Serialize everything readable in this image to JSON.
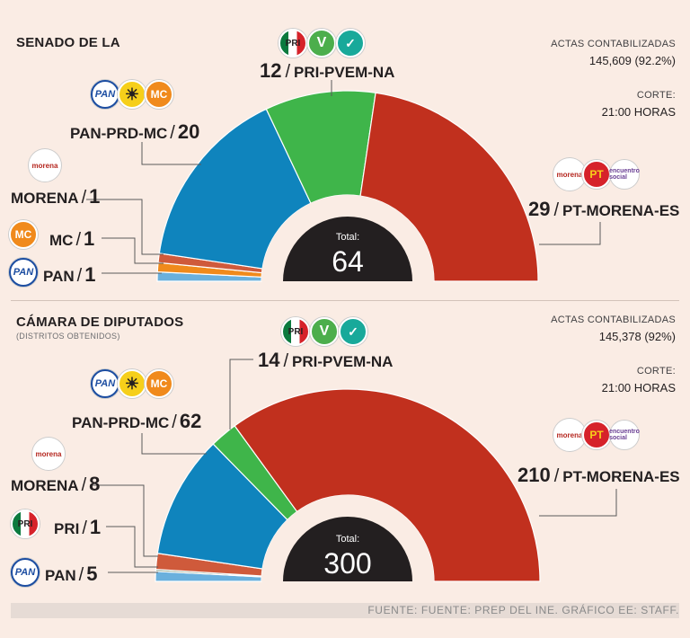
{
  "colors": {
    "pri_pvem_na": "#3fb54a",
    "pan_prd_mc": "#0f84bd",
    "morena": "#cf5a3b",
    "mc": "#f08a1c",
    "pan": "#6ab0dd",
    "pri": "#8aa08a",
    "pt_morena_es": "#c1301e"
  },
  "senado": {
    "title": "SENADO DE LA",
    "actas_label": "ACTAS CONTABILIZADAS",
    "actas_value": "145,609 (92.2%)",
    "corte_label": "CORTE:",
    "corte_value": "21:00 HORAS",
    "total_label": "Total:",
    "total_value": "64",
    "labels": {
      "pan_prd_mc": {
        "name": "PAN-PRD-MC",
        "sep": "/",
        "n": "20"
      },
      "morena": {
        "name": "MORENA",
        "sep": "/",
        "n": "1"
      },
      "mc": {
        "name": "MC",
        "sep": "/",
        "n": "1"
      },
      "pan": {
        "name": "PAN",
        "sep": "/",
        "n": "1"
      },
      "pri_pvem_na": {
        "n": "12",
        "sep": "/",
        "name": "PRI-PVEM-NA"
      },
      "pt_morena_es": {
        "n": "29",
        "sep": "/",
        "name": "PT-MORENA-ES"
      }
    }
  },
  "diputados": {
    "title": "CÁMARA DE DIPUTADOS",
    "subtitle": "(DISTRITOS OBTENIDOS)",
    "actas_label": "ACTAS CONTABILIZADAS",
    "actas_value": "145,378 (92%)",
    "corte_label": "CORTE:",
    "corte_value": "21:00 HORAS",
    "total_label": "Total:",
    "total_value": "300",
    "labels": {
      "pan_prd_mc": {
        "name": "PAN-PRD-MC",
        "sep": "/",
        "n": "62"
      },
      "morena": {
        "name": "MORENA",
        "sep": "/",
        "n": "8"
      },
      "pri": {
        "name": "PRI",
        "sep": "/",
        "n": "1"
      },
      "pan": {
        "name": "PAN",
        "sep": "/",
        "n": "5"
      },
      "pri_pvem_na": {
        "n": "14",
        "sep": "/",
        "name": "PRI-PVEM-NA"
      },
      "pt_morena_es": {
        "n": "210",
        "sep": "/",
        "name": "PT-MORENA-ES"
      }
    }
  },
  "logos": {
    "pan": "PAN",
    "prd": "☀",
    "mc": "MC",
    "pri": "PRI",
    "pvem": "V",
    "na": "✓",
    "morena": "morena",
    "pt": "PT",
    "es": "encuentro social"
  },
  "footer": "FUENTE: FUENTE: PREP DEL INE. GRÁFICO EE: STAFF.",
  "chart_data": [
    {
      "type": "pie",
      "title": "SENADO DE LA",
      "total": 64,
      "series": [
        {
          "name": "PAN",
          "value": 1
        },
        {
          "name": "MC",
          "value": 1
        },
        {
          "name": "MORENA",
          "value": 1
        },
        {
          "name": "PAN-PRD-MC",
          "value": 20
        },
        {
          "name": "PRI-PVEM-NA",
          "value": 12
        },
        {
          "name": "PT-MORENA-ES",
          "value": 29
        }
      ]
    },
    {
      "type": "pie",
      "title": "CÁMARA DE DIPUTADOS",
      "total": 300,
      "series": [
        {
          "name": "PAN",
          "value": 5
        },
        {
          "name": "PRI",
          "value": 1
        },
        {
          "name": "MORENA",
          "value": 8
        },
        {
          "name": "PAN-PRD-MC",
          "value": 62
        },
        {
          "name": "PRI-PVEM-NA",
          "value": 14
        },
        {
          "name": "PT-MORENA-ES",
          "value": 210
        }
      ]
    }
  ]
}
